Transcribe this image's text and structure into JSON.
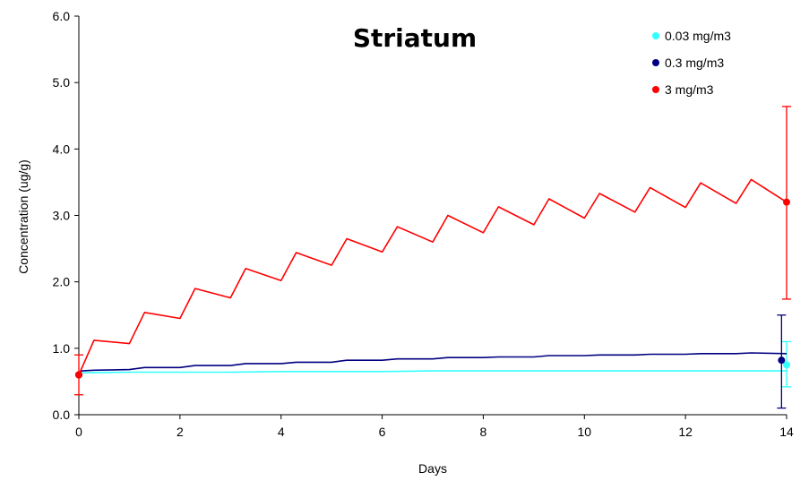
{
  "chart_data": {
    "type": "line",
    "title": "Striatum",
    "xlabel": "Days",
    "ylabel": "Concentration (ug/g)",
    "xlim": [
      0,
      14
    ],
    "ylim": [
      0,
      6
    ],
    "x_ticks": [
      "0",
      "2",
      "4",
      "6",
      "8",
      "10",
      "12",
      "14"
    ],
    "y_ticks": [
      "0.0",
      "1.0",
      "2.0",
      "3.0",
      "4.0",
      "5.0",
      "6.0"
    ],
    "legend_position": "top-right",
    "grid": false,
    "series": [
      {
        "name": "0.03 mg/m3",
        "color": "#33ffff",
        "x": [
          0,
          0.02,
          1,
          2,
          3,
          4,
          5,
          6,
          7,
          8,
          9,
          10,
          11,
          12,
          13,
          14
        ],
        "y": [
          0.6,
          0.63,
          0.64,
          0.64,
          0.64,
          0.65,
          0.65,
          0.65,
          0.66,
          0.66,
          0.66,
          0.66,
          0.66,
          0.66,
          0.66,
          0.66
        ],
        "points": [
          {
            "x": 0,
            "y": 0.6
          },
          {
            "x": 14,
            "y": 0.75,
            "err_low": 0.42,
            "err_high": 1.1
          }
        ]
      },
      {
        "name": "0.3 mg/m3",
        "color": "#000080",
        "x": [
          0,
          0.05,
          0.3,
          1,
          1.3,
          2,
          2.3,
          3,
          3.3,
          4,
          4.3,
          5,
          5.3,
          6,
          6.3,
          7,
          7.3,
          8,
          8.3,
          9,
          9.3,
          10,
          10.3,
          11,
          11.3,
          12,
          12.3,
          13,
          13.3,
          14
        ],
        "y": [
          0.6,
          0.66,
          0.67,
          0.68,
          0.71,
          0.71,
          0.74,
          0.74,
          0.77,
          0.77,
          0.79,
          0.79,
          0.82,
          0.82,
          0.84,
          0.84,
          0.86,
          0.86,
          0.87,
          0.87,
          0.89,
          0.89,
          0.9,
          0.9,
          0.91,
          0.91,
          0.92,
          0.92,
          0.93,
          0.92
        ],
        "points": [
          {
            "x": 0,
            "y": 0.6
          },
          {
            "x": 13.9,
            "y": 0.82,
            "err_low": 0.1,
            "err_high": 1.5
          }
        ]
      },
      {
        "name": "3 mg/m3",
        "color": "#ff0000",
        "x": [
          0,
          0.3,
          1,
          1.3,
          2,
          2.3,
          3,
          3.3,
          4,
          4.3,
          5,
          5.3,
          6,
          6.3,
          7,
          7.3,
          8,
          8.3,
          9,
          9.3,
          10,
          10.3,
          11,
          11.3,
          12,
          12.3,
          13,
          13.3,
          14
        ],
        "y": [
          0.6,
          1.12,
          1.07,
          1.54,
          1.45,
          1.9,
          1.76,
          2.2,
          2.02,
          2.44,
          2.25,
          2.65,
          2.45,
          2.83,
          2.6,
          3.0,
          2.74,
          3.13,
          2.86,
          3.25,
          2.96,
          3.33,
          3.05,
          3.42,
          3.12,
          3.49,
          3.18,
          3.54,
          3.2
        ],
        "points": [
          {
            "x": 0,
            "y": 0.6,
            "err_low": 0.3,
            "err_high": 0.9
          },
          {
            "x": 14,
            "y": 3.2,
            "err_low": 1.74,
            "err_high": 4.64
          }
        ]
      }
    ]
  }
}
